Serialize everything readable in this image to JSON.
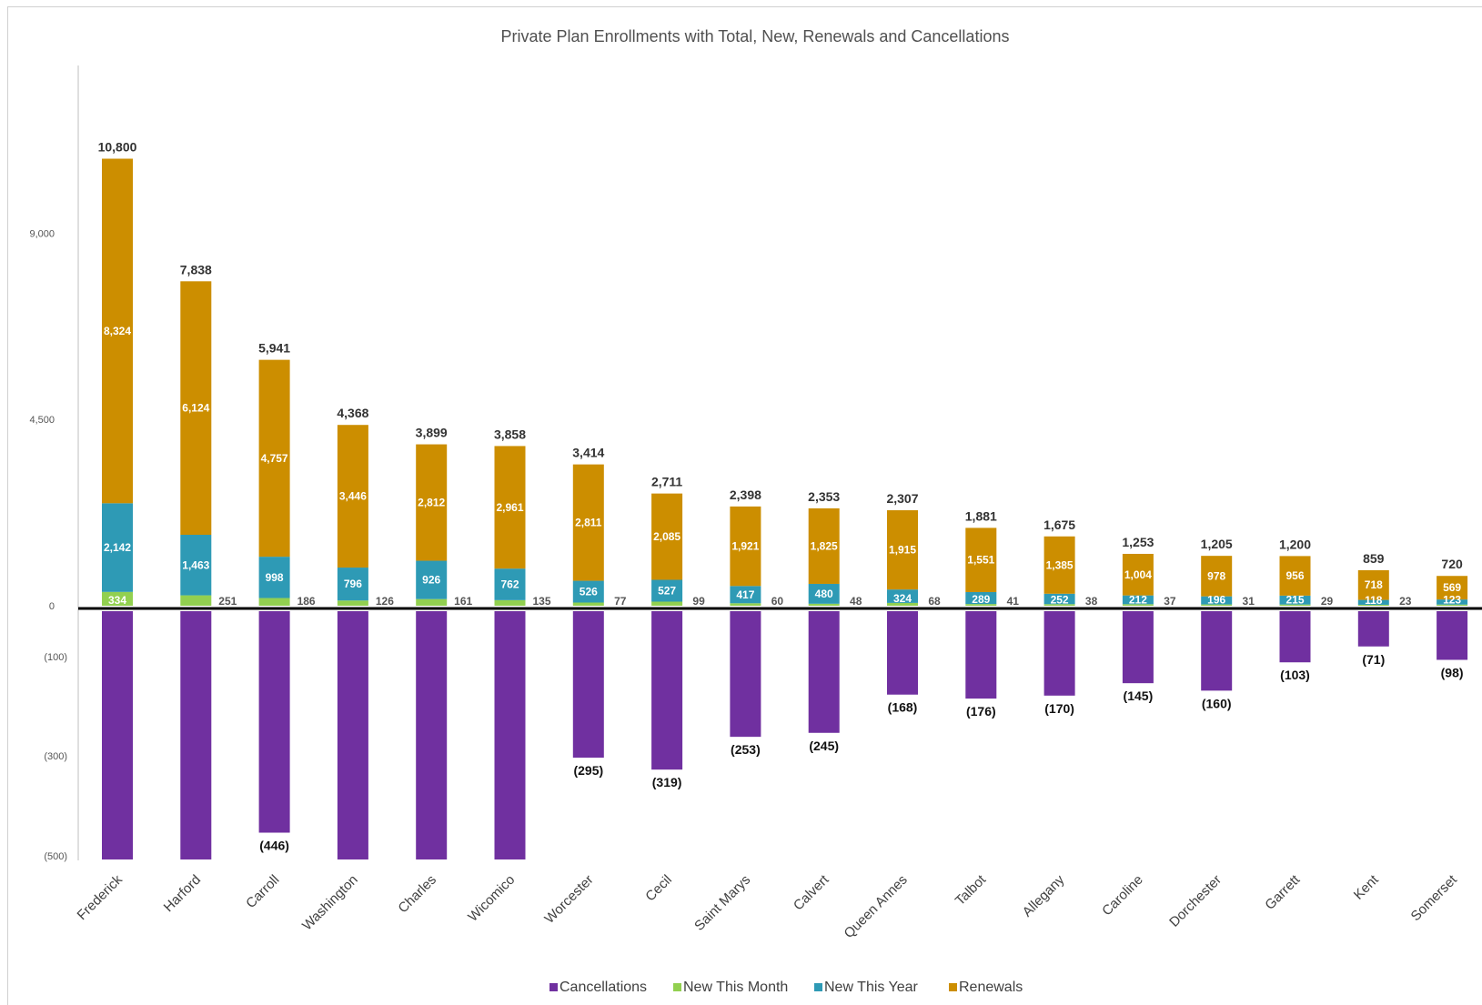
{
  "chart_data": {
    "type": "bar",
    "stacked": true,
    "title": "Private Plan Enrollments with Total, New, Renewals and Cancellations",
    "categories": [
      "Frederick",
      "Harford",
      "Carroll",
      "Washington",
      "Charles",
      "Wicomico",
      "Worcester",
      "Cecil",
      "Saint Marys",
      "Calvert",
      "Queen Annes",
      "Talbot",
      "Allegany",
      "Caroline",
      "Dorchester",
      "Garrett",
      "Kent",
      "Somerset"
    ],
    "totals": [
      10800,
      7838,
      5941,
      4368,
      3899,
      3858,
      3414,
      2711,
      2398,
      2353,
      2307,
      1881,
      1675,
      1253,
      1205,
      1200,
      859,
      720
    ],
    "total_labels": [
      "10,800",
      "7,838",
      "5,941",
      "4,368",
      "3,899",
      "3,858",
      "3,414",
      "2,711",
      "2,398",
      "2,353",
      "2,307",
      "1,881",
      "1,675",
      "1,253",
      "1,205",
      "1,200",
      "859",
      "720"
    ],
    "series": [
      {
        "name": "Cancellations",
        "color": "#7030a0",
        "values": [
          -500,
          -500,
          -446,
          -500,
          -500,
          -500,
          -295,
          -319,
          -253,
          -245,
          -168,
          -176,
          -170,
          -145,
          -160,
          -103,
          -71,
          -98
        ],
        "labels": [
          "",
          "",
          "(446)",
          "",
          "",
          "",
          "(295)",
          "(319)",
          "(253)",
          "(245)",
          "(168)",
          "(176)",
          "(170)",
          "(145)",
          "(160)",
          "(103)",
          "(71)",
          "(98)"
        ]
      },
      {
        "name": "New This Month",
        "color": "#92d050",
        "values": [
          334,
          251,
          186,
          126,
          161,
          135,
          77,
          99,
          60,
          48,
          68,
          41,
          38,
          37,
          31,
          29,
          23,
          28
        ],
        "labels": [
          "334",
          "251",
          "186",
          "126",
          "161",
          "135",
          "77",
          "99",
          "60",
          "48",
          "68",
          "41",
          "38",
          "37",
          "31",
          "29",
          "23",
          ""
        ]
      },
      {
        "name": "New This Year",
        "color": "#2e9ab5",
        "values": [
          2142,
          1463,
          998,
          796,
          926,
          762,
          526,
          527,
          417,
          480,
          324,
          289,
          252,
          212,
          196,
          215,
          118,
          123
        ],
        "labels": [
          "2,142",
          "1,463",
          "998",
          "796",
          "926",
          "762",
          "526",
          "527",
          "417",
          "480",
          "324",
          "289",
          "252",
          "212",
          "196",
          "215",
          "118",
          "123"
        ]
      },
      {
        "name": "Renewals",
        "color": "#cc8e00",
        "values": [
          8324,
          6124,
          4757,
          3446,
          2812,
          2961,
          2811,
          2085,
          1921,
          1825,
          1915,
          1551,
          1385,
          1004,
          978,
          956,
          718,
          569
        ],
        "labels": [
          "8,324",
          "6,124",
          "4,757",
          "3,446",
          "2,812",
          "2,961",
          "2,811",
          "2,085",
          "1,921",
          "1,825",
          "1,915",
          "1,551",
          "1,385",
          "1,004",
          "978",
          "956",
          "718",
          "569"
        ]
      }
    ],
    "y_ticks_positive": [
      "9,000",
      "4,500",
      "0"
    ],
    "y_ticks_negative": [
      "(100)",
      "(300)",
      "(500)"
    ],
    "ylim_positive": [
      0,
      13500
    ],
    "ylim_negative": [
      -500,
      0
    ],
    "legend": {
      "position": "bottom",
      "entries": [
        "Cancellations",
        "New This Month",
        "New This Year",
        "Renewals"
      ]
    },
    "grid": false
  }
}
